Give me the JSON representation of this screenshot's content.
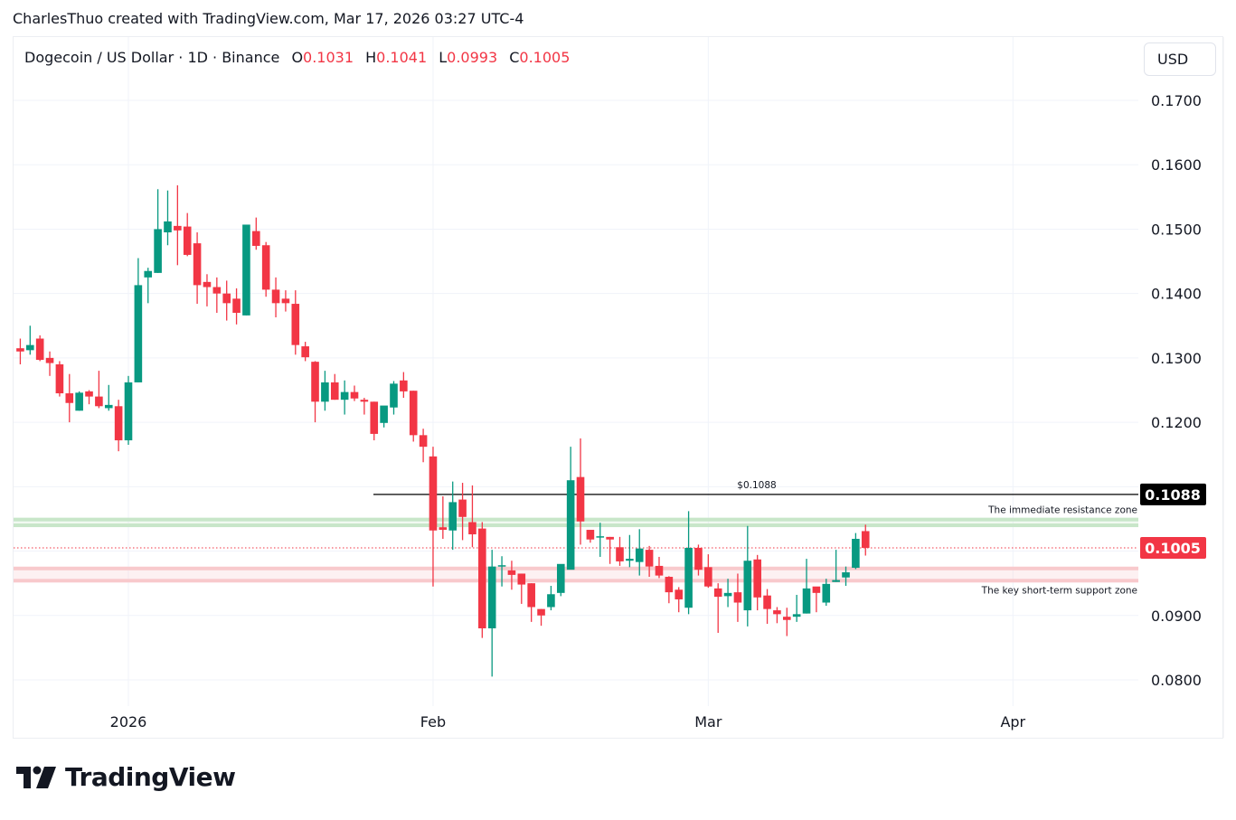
{
  "header": {
    "credit": "CharlesThuo created with TradingView.com, Mar 17, 2026 03:27 UTC-4"
  },
  "legend": {
    "symbol": "Dogecoin / US Dollar · 1D · Binance",
    "open_label": "O",
    "open": "0.1031",
    "high_label": "H",
    "high": "0.1041",
    "low_label": "L",
    "low": "0.0993",
    "close_label": "C",
    "close": "0.1005"
  },
  "currency_button": "USD",
  "brand": "TradingView",
  "colors": {
    "up": "#089981",
    "down": "#f23645",
    "resistance_zone": "#c8e6c9",
    "support_zone": "#f8c9cc",
    "last_price": "#f23645",
    "level_line": "#000000"
  },
  "chart_data": {
    "type": "candlestick",
    "title": "Dogecoin / US Dollar · 1D · Binance",
    "xlabel": "",
    "ylabel": "USD",
    "ylim": [
      0.075,
      0.179
    ],
    "y_ticks": [
      "0.1700",
      "0.1600",
      "0.1500",
      "0.1400",
      "0.1300",
      "0.1200",
      "0.0900",
      "0.0800"
    ],
    "x_ticks": [
      {
        "label": "2026",
        "date": "2026-01-01"
      },
      {
        "label": "Feb",
        "date": "2026-02-01"
      },
      {
        "label": "Mar",
        "date": "2026-03-01"
      },
      {
        "label": "Apr",
        "date": "2026-04-01"
      }
    ],
    "grid": true,
    "columns": [
      "date",
      "open",
      "high",
      "low",
      "close"
    ],
    "candles": [
      [
        "2025-12-21",
        0.1315,
        0.133,
        0.129,
        0.131
      ],
      [
        "2025-12-22",
        0.1312,
        0.135,
        0.1305,
        0.132
      ],
      [
        "2025-12-23",
        0.133,
        0.1335,
        0.1295,
        0.1297
      ],
      [
        "2025-12-24",
        0.13,
        0.131,
        0.1272,
        0.1292
      ],
      [
        "2025-12-25",
        0.129,
        0.1295,
        0.124,
        0.1245
      ],
      [
        "2025-12-26",
        0.1245,
        0.1275,
        0.12,
        0.123
      ],
      [
        "2025-12-27",
        0.1218,
        0.1248,
        0.1218,
        0.1246
      ],
      [
        "2025-12-28",
        0.1248,
        0.125,
        0.1228,
        0.124
      ],
      [
        "2025-12-29",
        0.124,
        0.128,
        0.1222,
        0.1225
      ],
      [
        "2025-12-30",
        0.1222,
        0.1258,
        0.1218,
        0.1227
      ],
      [
        "2025-12-31",
        0.1225,
        0.1235,
        0.1155,
        0.1172
      ],
      [
        "2026-01-01",
        0.1172,
        0.1272,
        0.1165,
        0.1262
      ],
      [
        "2026-01-02",
        0.1262,
        0.1455,
        0.1262,
        0.1413
      ],
      [
        "2026-01-03",
        0.1425,
        0.144,
        0.1385,
        0.1435
      ],
      [
        "2026-01-04",
        0.1432,
        0.1562,
        0.1432,
        0.15
      ],
      [
        "2026-01-05",
        0.1495,
        0.156,
        0.1475,
        0.1512
      ],
      [
        "2026-01-06",
        0.1505,
        0.1568,
        0.1444,
        0.1498
      ],
      [
        "2026-01-07",
        0.1504,
        0.1525,
        0.1458,
        0.146
      ],
      [
        "2026-01-08",
        0.1478,
        0.1495,
        0.1384,
        0.1413
      ],
      [
        "2026-01-09",
        0.1418,
        0.143,
        0.138,
        0.141
      ],
      [
        "2026-01-10",
        0.141,
        0.1425,
        0.137,
        0.14
      ],
      [
        "2026-01-11",
        0.14,
        0.142,
        0.1358,
        0.1385
      ],
      [
        "2026-01-12",
        0.1392,
        0.1408,
        0.1352,
        0.137
      ],
      [
        "2026-01-13",
        0.1366,
        0.15,
        0.1366,
        0.1507
      ],
      [
        "2026-01-14",
        0.1497,
        0.1518,
        0.1468,
        0.1474
      ],
      [
        "2026-01-15",
        0.1475,
        0.148,
        0.1395,
        0.1406
      ],
      [
        "2026-01-16",
        0.1406,
        0.1425,
        0.1363,
        0.1385
      ],
      [
        "2026-01-17",
        0.1392,
        0.1405,
        0.1372,
        0.1385
      ],
      [
        "2026-01-18",
        0.1384,
        0.1405,
        0.1305,
        0.132
      ],
      [
        "2026-01-19",
        0.1318,
        0.1325,
        0.1295,
        0.1301
      ],
      [
        "2026-01-20",
        0.1294,
        0.1295,
        0.12,
        0.1232
      ],
      [
        "2026-01-21",
        0.1232,
        0.128,
        0.1218,
        0.1262
      ],
      [
        "2026-01-22",
        0.1262,
        0.1275,
        0.1235,
        0.1235
      ],
      [
        "2026-01-23",
        0.1235,
        0.1265,
        0.1212,
        0.1247
      ],
      [
        "2026-01-24",
        0.1247,
        0.1257,
        0.1233,
        0.1237
      ],
      [
        "2026-01-25",
        0.1235,
        0.1238,
        0.1212,
        0.1232
      ],
      [
        "2026-01-26",
        0.1232,
        0.1232,
        0.1172,
        0.1182
      ],
      [
        "2026-01-27",
        0.1199,
        0.1213,
        0.1192,
        0.1226
      ],
      [
        "2026-01-28",
        0.1223,
        0.1264,
        0.1212,
        0.126
      ],
      [
        "2026-01-29",
        0.1265,
        0.1278,
        0.1238,
        0.1248
      ],
      [
        "2026-01-30",
        0.1249,
        0.1249,
        0.117,
        0.118
      ],
      [
        "2026-01-31",
        0.118,
        0.119,
        0.1138,
        0.1162
      ],
      [
        "2026-02-01",
        0.1147,
        0.1162,
        0.0945,
        0.1032
      ],
      [
        "2026-02-02",
        0.1037,
        0.1085,
        0.1019,
        0.1033
      ],
      [
        "2026-02-03",
        0.1032,
        0.1108,
        0.1002,
        0.1076
      ],
      [
        "2026-02-04",
        0.108,
        0.1106,
        0.1017,
        0.1053
      ],
      [
        "2026-02-05",
        0.1045,
        0.1102,
        0.1006,
        0.1026
      ],
      [
        "2026-02-06",
        0.1035,
        0.1045,
        0.0865,
        0.088
      ],
      [
        "2026-02-07",
        0.088,
        0.1002,
        0.0805,
        0.0976
      ],
      [
        "2026-02-08",
        0.0976,
        0.0992,
        0.0945,
        0.0978
      ],
      [
        "2026-02-09",
        0.097,
        0.0985,
        0.094,
        0.0963
      ],
      [
        "2026-02-10",
        0.0965,
        0.0965,
        0.0918,
        0.0948
      ],
      [
        "2026-02-11",
        0.095,
        0.095,
        0.089,
        0.0913
      ],
      [
        "2026-02-12",
        0.091,
        0.091,
        0.0884,
        0.09
      ],
      [
        "2026-02-13",
        0.0913,
        0.0946,
        0.0908,
        0.0933
      ],
      [
        "2026-02-14",
        0.0935,
        0.097,
        0.093,
        0.098
      ],
      [
        "2026-02-15",
        0.0971,
        0.1162,
        0.0975,
        0.111
      ],
      [
        "2026-02-16",
        0.1115,
        0.1175,
        0.101,
        0.1046
      ],
      [
        "2026-02-17",
        0.1033,
        0.1032,
        0.1013,
        0.1018
      ],
      [
        "2026-02-18",
        0.1022,
        0.1044,
        0.0991,
        0.1023
      ],
      [
        "2026-02-19",
        0.1022,
        0.1022,
        0.098,
        0.1018
      ],
      [
        "2026-02-20",
        0.1006,
        0.1022,
        0.0977,
        0.0984
      ],
      [
        "2026-02-21",
        0.0985,
        0.1025,
        0.0975,
        0.0988
      ],
      [
        "2026-02-22",
        0.0983,
        0.1034,
        0.0962,
        0.1004
      ],
      [
        "2026-02-23",
        0.1002,
        0.1008,
        0.096,
        0.0976
      ],
      [
        "2026-02-24",
        0.0977,
        0.0991,
        0.0958,
        0.0962
      ],
      [
        "2026-02-25",
        0.096,
        0.0961,
        0.0919,
        0.0936
      ],
      [
        "2026-02-26",
        0.094,
        0.0944,
        0.0905,
        0.0925
      ],
      [
        "2026-02-27",
        0.0912,
        0.1062,
        0.0902,
        0.1005
      ],
      [
        "2026-02-28",
        0.1005,
        0.101,
        0.0962,
        0.0971
      ],
      [
        "2026-03-01",
        0.0975,
        0.0995,
        0.0943,
        0.0945
      ],
      [
        "2026-03-02",
        0.0942,
        0.095,
        0.0873,
        0.0929
      ],
      [
        "2026-03-03",
        0.093,
        0.0957,
        0.0913,
        0.0935
      ],
      [
        "2026-03-04",
        0.0936,
        0.0965,
        0.089,
        0.092
      ],
      [
        "2026-03-05",
        0.0908,
        0.1039,
        0.0883,
        0.0985
      ],
      [
        "2026-03-06",
        0.0987,
        0.0994,
        0.0908,
        0.0928
      ],
      [
        "2026-03-07",
        0.0931,
        0.0941,
        0.0887,
        0.091
      ],
      [
        "2026-03-08",
        0.0908,
        0.0913,
        0.0888,
        0.0902
      ],
      [
        "2026-03-09",
        0.0898,
        0.0912,
        0.0868,
        0.0893
      ],
      [
        "2026-03-10",
        0.0898,
        0.0932,
        0.089,
        0.0902
      ],
      [
        "2026-03-11",
        0.0903,
        0.0988,
        0.0903,
        0.0942
      ],
      [
        "2026-03-12",
        0.0945,
        0.0943,
        0.0905,
        0.0935
      ],
      [
        "2026-03-13",
        0.092,
        0.0957,
        0.0915,
        0.0949
      ],
      [
        "2026-03-14",
        0.0952,
        0.1002,
        0.0952,
        0.0955
      ],
      [
        "2026-03-15",
        0.0959,
        0.0976,
        0.0946,
        0.0967
      ],
      [
        "2026-03-16",
        0.0974,
        0.1028,
        0.0972,
        0.1019
      ],
      [
        "2026-03-17",
        0.1031,
        0.1041,
        0.0993,
        0.1005
      ]
    ],
    "levels": [
      {
        "label": "$0.1088",
        "price": 0.1088,
        "type": "horizontal_line",
        "badge": "0.1088"
      },
      {
        "label": "The immediate resistance zone",
        "from": 0.104,
        "to": 0.1049,
        "type": "zone",
        "color": "#c8e6c9"
      },
      {
        "label": "The key short-term support zone",
        "from": 0.0954,
        "to": 0.0973,
        "type": "zone",
        "color": "#f8c9cc"
      },
      {
        "label": "Last price",
        "price": 0.1005,
        "type": "last_price_line",
        "badge": "0.1005"
      }
    ]
  }
}
